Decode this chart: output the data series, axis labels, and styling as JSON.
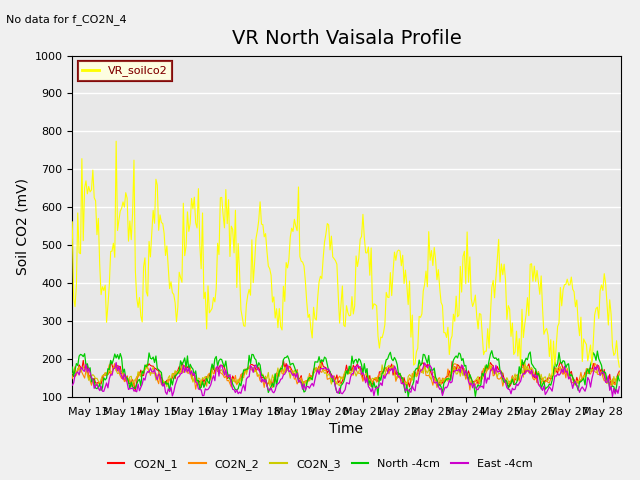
{
  "title": "VR North Vaisala Profile",
  "subtitle": "No data for f_CO2N_4",
  "xlabel": "Time",
  "ylabel": "Soil CO2 (mV)",
  "ylim": [
    100,
    1000
  ],
  "yticks": [
    100,
    200,
    300,
    400,
    500,
    600,
    700,
    800,
    900,
    1000
  ],
  "xtick_labels": [
    "May 13",
    "May 14",
    "May 15",
    "May 16",
    "May 17",
    "May 18",
    "May 19",
    "May 20",
    "May 21",
    "May 22",
    "May 23",
    "May 24",
    "May 25",
    "May 26",
    "May 27",
    "May 28"
  ],
  "legend_label": "VR_soilco2",
  "legend_entries": [
    "CO2N_1",
    "CO2N_2",
    "CO2N_3",
    "North -4cm",
    "East -4cm"
  ],
  "legend_colors": [
    "#ff0000",
    "#ff8800",
    "#cccc00",
    "#00cc00",
    "#cc00cc"
  ],
  "background_color": "#f0f0f0",
  "plot_bg_color": "#e8e8e8",
  "grid_color": "#ffffff",
  "soilco2_color": "#ffff00",
  "co2n1_color": "#ff0000",
  "co2n2_color": "#ff8800",
  "co2n3_color": "#cccc00",
  "north4cm_color": "#00cc00",
  "east4cm_color": "#cc00cc",
  "title_fontsize": 14,
  "label_fontsize": 10,
  "tick_fontsize": 8,
  "n_days": 16,
  "pts_per_day": 25
}
